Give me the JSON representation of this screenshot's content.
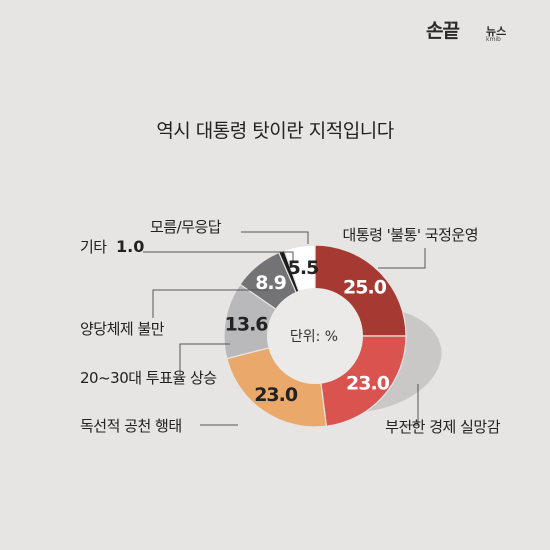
{
  "logo": {
    "main": "손끝",
    "sub": "뉴스",
    "tiny": "kmib"
  },
  "chart_data": {
    "type": "pie",
    "title": "역시 대통령 탓이란 지적입니다",
    "center_label": "단위: %",
    "categories": [
      "대통령 '불통' 국정운영",
      "부진한 경제 실망감",
      "독선적 공천 행태",
      "20~30대 투표율 상승",
      "양당체제 불만",
      "기타",
      "모름/무응답"
    ],
    "values": [
      25.0,
      23.0,
      23.0,
      13.6,
      8.9,
      1.0,
      5.5
    ],
    "value_labels": [
      "25.0",
      "23.0",
      "23.0",
      "13.6",
      "8.9",
      "1.0",
      "5.5"
    ],
    "colors": [
      "#a63a32",
      "#d9534f",
      "#eaa96b",
      "#b9b9bb",
      "#737375",
      "#1c1c1c",
      "#ffffff"
    ],
    "label_colors": [
      "#ffffff",
      "#ffffff",
      "#222222",
      "#222222",
      "#ffffff",
      "#222222",
      "#222222"
    ]
  }
}
